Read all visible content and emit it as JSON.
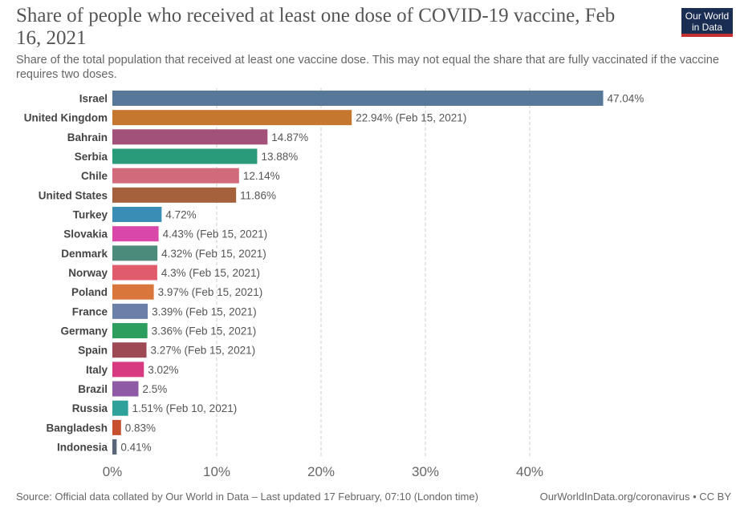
{
  "header": {
    "title": "Share of people who received at least one dose of COVID-19 vaccine, Feb 16, 2021",
    "subtitle": "Share of the total population that received at least one vaccine dose. This may not equal the share that are fully vaccinated if the vaccine requires two doses.",
    "logo": "Our World in Data"
  },
  "footer": {
    "source": "Source: Official data collated by Our World in Data – Last updated 17 February, 07:10 (London time)",
    "link": "OurWorldInData.org/coronavirus • CC BY"
  },
  "chart_data": {
    "type": "bar",
    "orientation": "horizontal",
    "title": "Share of people who received at least one dose of COVID-19 vaccine, Feb 16, 2021",
    "xlim": [
      0,
      47.04
    ],
    "xticks": [
      0,
      10,
      20,
      30,
      40
    ],
    "xtick_labels": [
      "0%",
      "10%",
      "20%",
      "30%",
      "40%"
    ],
    "grid": "vertical-dashed",
    "categories": [
      "Israel",
      "United Kingdom",
      "Bahrain",
      "Serbia",
      "Chile",
      "United States",
      "Turkey",
      "Slovakia",
      "Denmark",
      "Norway",
      "Poland",
      "France",
      "Germany",
      "Spain",
      "Italy",
      "Brazil",
      "Russia",
      "Bangladesh",
      "Indonesia"
    ],
    "values": [
      47.04,
      22.94,
      14.87,
      13.88,
      12.14,
      11.86,
      4.72,
      4.43,
      4.32,
      4.3,
      3.97,
      3.39,
      3.36,
      3.27,
      3.02,
      2.5,
      1.51,
      0.83,
      0.41
    ],
    "labels": [
      "47.04%",
      "22.94% (Feb 15, 2021)",
      "14.87%",
      "13.88%",
      "12.14%",
      "11.86%",
      "4.72%",
      "4.43% (Feb 15, 2021)",
      "4.32% (Feb 15, 2021)",
      "4.3% (Feb 15, 2021)",
      "3.97% (Feb 15, 2021)",
      "3.39% (Feb 15, 2021)",
      "3.36% (Feb 15, 2021)",
      "3.27% (Feb 15, 2021)",
      "3.02%",
      "2.5%",
      "1.51% (Feb 10, 2021)",
      "0.83%",
      "0.41%"
    ],
    "colors": [
      "#58789a",
      "#c6772f",
      "#a2517a",
      "#2a9b7a",
      "#d16b7b",
      "#a5603c",
      "#3a8eb6",
      "#d847a9",
      "#4b8b7c",
      "#e05b6b",
      "#d8763b",
      "#6a80a8",
      "#2e9e5e",
      "#9e4a55",
      "#d83a82",
      "#8e5aa6",
      "#2ea29a",
      "#c7502f",
      "#59667a"
    ]
  }
}
